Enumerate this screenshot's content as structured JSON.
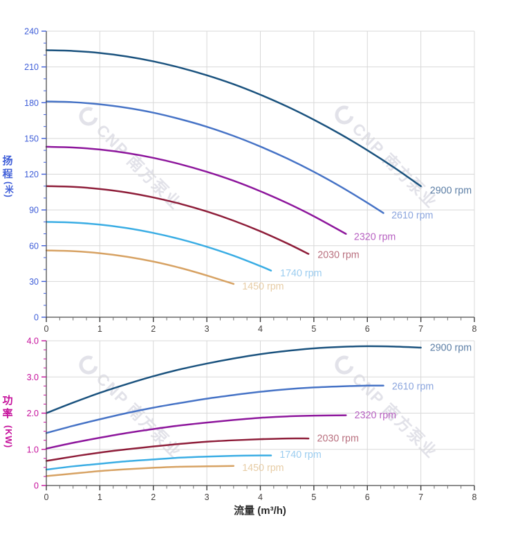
{
  "page": {
    "background": "#ffffff"
  },
  "style": {
    "grid_color": "#d8d8d8",
    "axis_color": "#4b4b4b",
    "x_tick_label_color": "#433f3d",
    "x_title_color": "#2b2b2b"
  },
  "watermark": {
    "text": "CNP 南方泵业",
    "color": "#e2e2e9",
    "logo": "cnp-ring"
  },
  "chart_data": [
    {
      "type": "line",
      "name": "head-vs-flow",
      "y_axis_title": "扬程",
      "y_axis_unit": "(米)",
      "y_axis_color": "#3f5ed8",
      "ylim": [
        0,
        240
      ],
      "y_major_step": 30,
      "y_minor_step": 10,
      "y_tick_labels": [
        "0",
        "30",
        "60",
        "90",
        "120",
        "150",
        "180",
        "210",
        "240"
      ],
      "xlim": [
        0,
        8
      ],
      "x_major_step": 1,
      "x_minor_step": 0.25,
      "x_tick_labels": [
        "0",
        "1",
        "2",
        "3",
        "4",
        "5",
        "6",
        "7",
        "8"
      ],
      "grid": "major",
      "series": [
        {
          "name": "2900 rpm",
          "color": "#1a527e",
          "label_color": "#5d7fa6",
          "label_at": [
            7.17,
            106
          ],
          "points": [
            [
              0,
              224
            ],
            [
              0.5,
              223.4
            ],
            [
              1,
              221.7
            ],
            [
              1.5,
              218.8
            ],
            [
              2,
              214.7
            ],
            [
              2.5,
              209.4
            ],
            [
              3,
              203
            ],
            [
              3.5,
              195.5
            ],
            [
              4,
              186.7
            ],
            [
              4.5,
              176.8
            ],
            [
              5,
              165.7
            ],
            [
              5.5,
              153.5
            ],
            [
              6,
              140.1
            ],
            [
              6.5,
              125.6
            ],
            [
              7,
              109.9
            ]
          ]
        },
        {
          "name": "2610 rpm",
          "color": "#4673c6",
          "label_color": "#8ca6de",
          "label_at": [
            6.45,
            85
          ],
          "points": [
            [
              0,
              181
            ],
            [
              0.5,
              180.4
            ],
            [
              1,
              178.6
            ],
            [
              1.5,
              175.7
            ],
            [
              2,
              171.6
            ],
            [
              2.5,
              166.2
            ],
            [
              3,
              159.8
            ],
            [
              3.5,
              152.1
            ],
            [
              4,
              143.2
            ],
            [
              4.5,
              133.2
            ],
            [
              5,
              122
            ],
            [
              5.5,
              109.6
            ],
            [
              6,
              96
            ],
            [
              6.3,
              87.4
            ]
          ]
        },
        {
          "name": "2320 rpm",
          "color": "#8d169c",
          "label_color": "#b862c2",
          "label_at": [
            5.75,
            67
          ],
          "points": [
            [
              0,
              143
            ],
            [
              0.5,
              142.4
            ],
            [
              1,
              140.7
            ],
            [
              1.5,
              137.8
            ],
            [
              2,
              133.7
            ],
            [
              2.5,
              128.4
            ],
            [
              3,
              122
            ],
            [
              3.5,
              114.5
            ],
            [
              4,
              105.7
            ],
            [
              4.5,
              95.8
            ],
            [
              5,
              84.7
            ],
            [
              5.6,
              69.9
            ]
          ]
        },
        {
          "name": "2030 rpm",
          "color": "#8e1d39",
          "label_color": "#b9707f",
          "label_at": [
            5.07,
            52
          ],
          "points": [
            [
              0,
              110
            ],
            [
              0.5,
              109.4
            ],
            [
              1,
              107.6
            ],
            [
              1.5,
              104.7
            ],
            [
              2,
              100.5
            ],
            [
              2.5,
              95.2
            ],
            [
              3,
              88.7
            ],
            [
              3.5,
              81
            ],
            [
              4,
              72.1
            ],
            [
              4.5,
              62
            ],
            [
              4.9,
              53.1
            ]
          ]
        },
        {
          "name": "1740 rpm",
          "color": "#3aade4",
          "label_color": "#9ccdf0",
          "label_at": [
            4.37,
            36.5
          ],
          "points": [
            [
              0,
              80
            ],
            [
              0.5,
              79.4
            ],
            [
              1,
              77.7
            ],
            [
              1.5,
              74.8
            ],
            [
              2,
              70.7
            ],
            [
              2.5,
              65.5
            ],
            [
              3,
              59.1
            ],
            [
              3.5,
              51.6
            ],
            [
              4,
              42.9
            ],
            [
              4.2,
              39.1
            ]
          ]
        },
        {
          "name": "1450 rpm",
          "color": "#d7a263",
          "label_color": "#e7cda6",
          "label_at": [
            3.66,
            25.5
          ],
          "points": [
            [
              0,
              56
            ],
            [
              0.5,
              55.4
            ],
            [
              1,
              53.7
            ],
            [
              1.5,
              50.8
            ],
            [
              2,
              46.7
            ],
            [
              2.5,
              41.4
            ],
            [
              3,
              35
            ],
            [
              3.5,
              27.9
            ]
          ]
        }
      ]
    },
    {
      "type": "line",
      "name": "power-vs-flow",
      "y_axis_title": "功率",
      "y_axis_unit": "(KW)",
      "y_axis_color": "#c50f9b",
      "ylim": [
        0,
        4
      ],
      "y_major_step": 1,
      "y_minor_step": 0.25,
      "y_tick_labels": [
        "0",
        "1.0",
        "2.0",
        "3.0",
        "4.0"
      ],
      "xlim": [
        0,
        8
      ],
      "x_major_step": 1,
      "x_minor_step": 0.25,
      "x_tick_labels": [
        "0",
        "1",
        "2",
        "3",
        "4",
        "5",
        "6",
        "7",
        "8"
      ],
      "x_axis_title": "流量 (m³/h)",
      "grid": "major",
      "series": [
        {
          "name": "2900 rpm",
          "color": "#1a527e",
          "label_color": "#5d7fa6",
          "label_at": [
            7.17,
            3.8
          ],
          "points": [
            [
              0,
              2.0
            ],
            [
              0.5,
              2.29
            ],
            [
              1,
              2.56
            ],
            [
              1.5,
              2.8
            ],
            [
              2,
              3.02
            ],
            [
              2.5,
              3.21
            ],
            [
              3,
              3.37
            ],
            [
              3.5,
              3.51
            ],
            [
              4,
              3.63
            ],
            [
              4.5,
              3.72
            ],
            [
              5,
              3.79
            ],
            [
              5.5,
              3.83
            ],
            [
              6,
              3.85
            ],
            [
              6.5,
              3.84
            ],
            [
              7,
              3.81
            ]
          ]
        },
        {
          "name": "2610 rpm",
          "color": "#4673c6",
          "label_color": "#8ca6de",
          "label_at": [
            6.46,
            2.73
          ],
          "points": [
            [
              0,
              1.45
            ],
            [
              0.5,
              1.65
            ],
            [
              1,
              1.83
            ],
            [
              1.5,
              2.0
            ],
            [
              2,
              2.15
            ],
            [
              2.5,
              2.28
            ],
            [
              3,
              2.4
            ],
            [
              3.5,
              2.5
            ],
            [
              4,
              2.59
            ],
            [
              4.5,
              2.66
            ],
            [
              5,
              2.71
            ],
            [
              5.5,
              2.74
            ],
            [
              6,
              2.76
            ],
            [
              6.3,
              2.76
            ]
          ]
        },
        {
          "name": "2320 rpm",
          "color": "#8d169c",
          "label_color": "#b862c2",
          "label_at": [
            5.76,
            1.93
          ],
          "points": [
            [
              0,
              1.02
            ],
            [
              0.5,
              1.18
            ],
            [
              1,
              1.32
            ],
            [
              1.5,
              1.45
            ],
            [
              2,
              1.56
            ],
            [
              2.5,
              1.66
            ],
            [
              3,
              1.74
            ],
            [
              3.5,
              1.81
            ],
            [
              4,
              1.87
            ],
            [
              4.5,
              1.91
            ],
            [
              5,
              1.93
            ],
            [
              5.6,
              1.94
            ]
          ]
        },
        {
          "name": "2030 rpm",
          "color": "#8e1d39",
          "label_color": "#b9707f",
          "label_at": [
            5.06,
            1.29
          ],
          "points": [
            [
              0,
              0.68
            ],
            [
              0.5,
              0.8
            ],
            [
              1,
              0.91
            ],
            [
              1.5,
              1.0
            ],
            [
              2,
              1.08
            ],
            [
              2.5,
              1.15
            ],
            [
              3,
              1.21
            ],
            [
              3.5,
              1.25
            ],
            [
              4,
              1.28
            ],
            [
              4.5,
              1.3
            ],
            [
              4.9,
              1.3
            ]
          ]
        },
        {
          "name": "1740 rpm",
          "color": "#3aade4",
          "label_color": "#9ccdf0",
          "label_at": [
            4.36,
            0.84
          ],
          "points": [
            [
              0,
              0.44
            ],
            [
              0.5,
              0.53
            ],
            [
              1,
              0.6
            ],
            [
              1.5,
              0.67
            ],
            [
              2,
              0.72
            ],
            [
              2.5,
              0.77
            ],
            [
              3,
              0.8
            ],
            [
              3.5,
              0.82
            ],
            [
              4,
              0.83
            ],
            [
              4.2,
              0.83
            ]
          ]
        },
        {
          "name": "1450 rpm",
          "color": "#d7a263",
          "label_color": "#e7cda6",
          "label_at": [
            3.66,
            0.48
          ],
          "points": [
            [
              0,
              0.26
            ],
            [
              0.5,
              0.33
            ],
            [
              1,
              0.4
            ],
            [
              1.5,
              0.45
            ],
            [
              2,
              0.49
            ],
            [
              2.5,
              0.52
            ],
            [
              3,
              0.53
            ],
            [
              3.5,
              0.54
            ]
          ]
        }
      ]
    }
  ]
}
